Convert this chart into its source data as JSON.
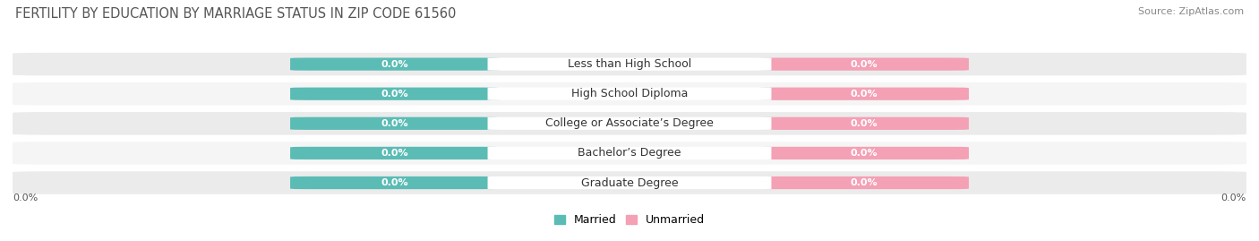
{
  "title": "FERTILITY BY EDUCATION BY MARRIAGE STATUS IN ZIP CODE 61560",
  "source": "Source: ZipAtlas.com",
  "categories": [
    "Less than High School",
    "High School Diploma",
    "College or Associate’s Degree",
    "Bachelor’s Degree",
    "Graduate Degree"
  ],
  "married_values": [
    0.0,
    0.0,
    0.0,
    0.0,
    0.0
  ],
  "unmarried_values": [
    0.0,
    0.0,
    0.0,
    0.0,
    0.0
  ],
  "married_color": "#5bbcb5",
  "unmarried_color": "#f4a0b5",
  "row_bg_color": "#ebebeb",
  "row_bg_alt_color": "#f5f5f5",
  "label_color": "#333333",
  "title_color": "#555555",
  "title_fontsize": 10.5,
  "source_fontsize": 8,
  "bar_label_fontsize": 8,
  "category_fontsize": 9,
  "legend_fontsize": 9,
  "figure_width": 14.06,
  "figure_height": 2.69,
  "dpi": 100
}
